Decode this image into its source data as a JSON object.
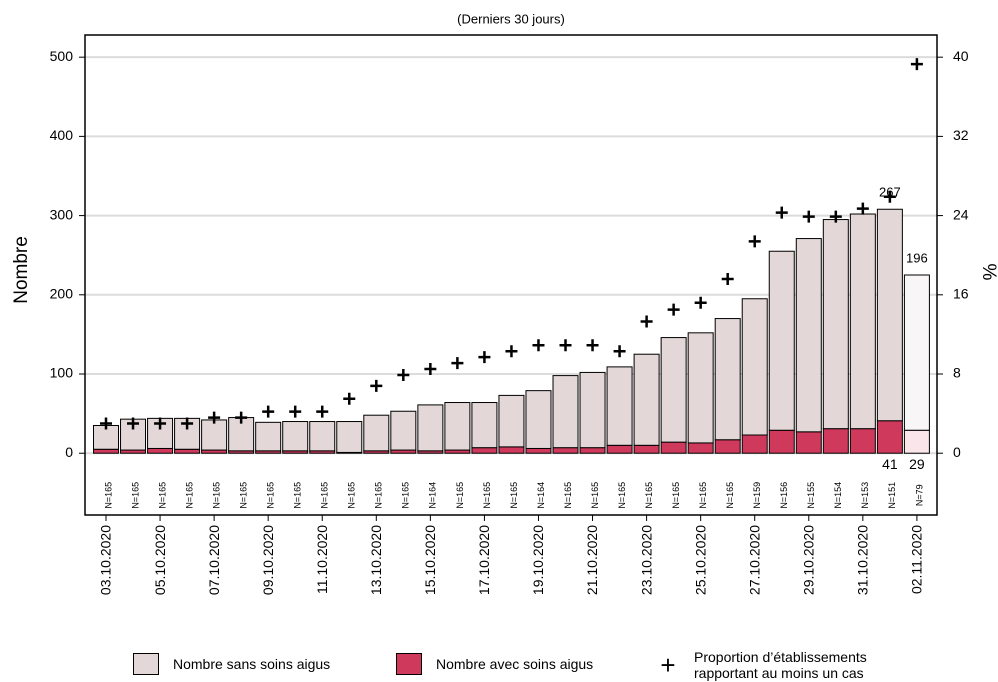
{
  "chart_data": {
    "type": "bar",
    "title": "(Derniers 30 jours)",
    "y_label": "Nombre",
    "y2_label": "%",
    "categories": [
      "03.10.2020",
      null,
      "05.10.2020",
      null,
      "07.10.2020",
      null,
      "09.10.2020",
      null,
      "11.10.2020",
      null,
      "13.10.2020",
      null,
      "15.10.2020",
      null,
      "17.10.2020",
      null,
      "19.10.2020",
      null,
      "21.10.2020",
      null,
      "23.10.2020",
      null,
      "25.10.2020",
      null,
      "27.10.2020",
      null,
      "29.10.2020",
      null,
      "31.10.2020",
      null,
      "02.11.2020"
    ],
    "n_labels": [
      "N=165",
      "N=165",
      "N=165",
      "N=165",
      "N=165",
      "N=165",
      "N=165",
      "N=165",
      "N=165",
      "N=165",
      "N=165",
      "N=165",
      "N=164",
      "N=165",
      "N=165",
      "N=165",
      "N=164",
      "N=165",
      "N=165",
      "N=165",
      "N=165",
      "N=165",
      "N=165",
      "N=165",
      "N=159",
      "N=156",
      "N=155",
      "N=154",
      "N=153",
      "N=151",
      "N=79"
    ],
    "series": [
      {
        "name": "Nombre sans soins aigus",
        "type": "bar",
        "color": "#e3d7d7",
        "colors": [
          "#e3d7d7",
          "#e3d7d7",
          "#e3d7d7",
          "#e3d7d7",
          "#e3d7d7",
          "#e3d7d7",
          "#e3d7d7",
          "#e3d7d7",
          "#e3d7d7",
          "#e3d7d7",
          "#e3d7d7",
          "#e3d7d7",
          "#e3d7d7",
          "#e3d7d7",
          "#e3d7d7",
          "#e3d7d7",
          "#e3d7d7",
          "#e3d7d7",
          "#e3d7d7",
          "#e3d7d7",
          "#e3d7d7",
          "#e3d7d7",
          "#e3d7d7",
          "#e3d7d7",
          "#e3d7d7",
          "#e3d7d7",
          "#e3d7d7",
          "#e3d7d7",
          "#e3d7d7",
          "#e3d7d7",
          "#f8f6f6"
        ],
        "values": [
          30,
          39,
          38,
          39,
          38,
          42,
          36,
          37,
          37,
          39,
          45,
          49,
          58,
          60,
          57,
          65,
          73,
          91,
          95,
          99,
          115,
          132,
          139,
          153,
          172,
          226,
          244,
          264,
          271,
          267,
          196
        ],
        "value_labels": [
          null,
          null,
          null,
          null,
          null,
          null,
          null,
          null,
          null,
          null,
          null,
          null,
          null,
          null,
          null,
          null,
          null,
          null,
          null,
          null,
          null,
          null,
          null,
          null,
          null,
          null,
          null,
          null,
          null,
          "267",
          "196"
        ]
      },
      {
        "name": "Nombre avec soins aigus",
        "type": "bar",
        "color": "#cf3a5c",
        "colors": [
          "#cf3a5c",
          "#cf3a5c",
          "#cf3a5c",
          "#cf3a5c",
          "#cf3a5c",
          "#cf3a5c",
          "#cf3a5c",
          "#cf3a5c",
          "#cf3a5c",
          "#cf3a5c",
          "#cf3a5c",
          "#cf3a5c",
          "#cf3a5c",
          "#cf3a5c",
          "#cf3a5c",
          "#cf3a5c",
          "#cf3a5c",
          "#cf3a5c",
          "#cf3a5c",
          "#cf3a5c",
          "#cf3a5c",
          "#cf3a5c",
          "#cf3a5c",
          "#cf3a5c",
          "#cf3a5c",
          "#cf3a5c",
          "#cf3a5c",
          "#cf3a5c",
          "#cf3a5c",
          "#cf3a5c",
          "#fae6ea"
        ],
        "values": [
          5,
          4,
          6,
          5,
          4,
          3,
          3,
          3,
          3,
          1,
          3,
          4,
          3,
          4,
          7,
          8,
          6,
          7,
          7,
          10,
          10,
          14,
          13,
          17,
          23,
          29,
          27,
          31,
          31,
          41,
          29
        ],
        "value_labels": [
          null,
          null,
          null,
          null,
          null,
          null,
          null,
          null,
          null,
          null,
          null,
          null,
          null,
          null,
          null,
          null,
          null,
          null,
          null,
          null,
          null,
          null,
          null,
          null,
          null,
          null,
          null,
          null,
          null,
          "41",
          "29"
        ]
      },
      {
        "name": "Proportion d’établissements rapportant au moins un cas",
        "type": "scatter",
        "axis": "y2",
        "color": "#000000",
        "values": [
          3.0,
          3.0,
          3.0,
          3.0,
          3.6,
          3.6,
          4.2,
          4.2,
          4.2,
          5.5,
          6.8,
          7.9,
          8.5,
          9.1,
          9.7,
          10.3,
          10.9,
          10.9,
          10.9,
          10.3,
          13.3,
          14.5,
          15.2,
          17.6,
          21.4,
          24.3,
          23.9,
          23.9,
          24.7,
          25.9,
          39.3
        ]
      }
    ],
    "ylim": [
      -78,
      528
    ],
    "yticks": [
      0,
      100,
      200,
      300,
      400,
      500
    ],
    "y2lim": [
      -6.24,
      42.24
    ],
    "y2ticks": [
      0,
      8,
      16,
      24,
      32,
      40
    ],
    "grid": true
  }
}
